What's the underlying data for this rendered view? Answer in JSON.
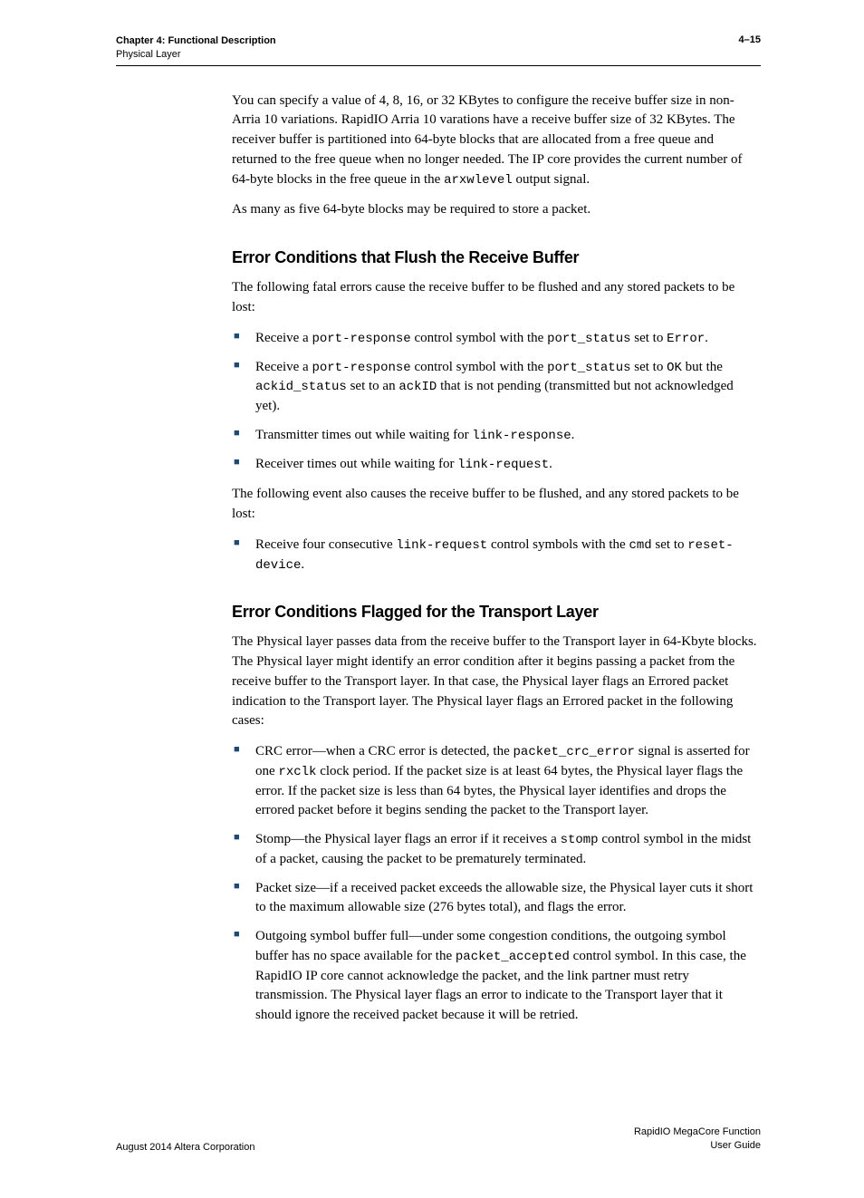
{
  "header": {
    "chapter": "Chapter 4:  Functional Description",
    "section": "Physical Layer",
    "pageNum": "4–15"
  },
  "intro": {
    "p1_a": "You can specify a value of 4, 8, 16, or 32 KBytes to configure the receive buffer size in non-Arria 10 variations. RapidIO Arria 10 varations have a receive buffer size of 32 KBytes. The receiver buffer is partitioned into 64-byte blocks that are allocated from a free queue and returned to the free queue when no longer needed. The IP core provides the current number of 64-byte blocks in the free queue in the ",
    "p1_code": "arxwlevel",
    "p1_b": " output signal.",
    "p2": "As many as five 64-byte blocks may be required to store a packet."
  },
  "sec1": {
    "heading": "Error Conditions that Flush the Receive Buffer",
    "p1": "The following fatal errors cause the receive buffer to be flushed and any stored packets to be lost:",
    "b1": {
      "a": "Receive a ",
      "c1": "port-response",
      "b": " control symbol with the ",
      "c2": "port_status",
      "c": " set to ",
      "c3": "Error",
      "d": "."
    },
    "b2": {
      "a": "Receive a ",
      "c1": "port-response",
      "b": " control symbol with the ",
      "c2": "port_status",
      "c": " set to ",
      "c3": "OK",
      "d": " but the ",
      "c4": "ackid_status",
      "e": " set to an ",
      "c5": "ackID",
      "f": " that is not pending (transmitted but not acknowledged yet)."
    },
    "b3": {
      "a": "Transmitter times out while waiting for ",
      "c1": "link-response",
      "b": "."
    },
    "b4": {
      "a": "Receiver times out while waiting for ",
      "c1": "link-request",
      "b": "."
    },
    "p2": "The following event also causes the receive buffer to be flushed, and any stored packets to be lost:",
    "b5": {
      "a": "Receive four consecutive ",
      "c1": "link-request",
      "b": " control symbols with the ",
      "c2": "cmd",
      "c": " set to ",
      "c3": "reset-device",
      "d": "."
    }
  },
  "sec2": {
    "heading": "Error Conditions Flagged for the Transport Layer",
    "p1": "The Physical layer passes data from the receive buffer to the Transport layer in 64-Kbyte blocks. The Physical layer might identify an error condition after it begins passing a packet from the receive buffer to the Transport layer. In that case, the Physical layer flags an Errored packet indication to the Transport layer. The Physical layer flags an Errored packet in the following cases:",
    "b1": {
      "a": "CRC error—when a CRC error is detected, the ",
      "c1": "packet_crc_error",
      "b": " signal is asserted for one ",
      "c2": "rxclk",
      "c": " clock period. If the packet size is at least 64 bytes, the Physical layer flags the error. If the packet size is less than 64 bytes, the Physical layer identifies and drops the errored packet before it begins sending the packet to the Transport layer."
    },
    "b2": {
      "a": "Stomp—the Physical layer flags an error if it receives a ",
      "c1": "stomp",
      "b": " control symbol in the midst of a packet, causing the packet to be prematurely terminated."
    },
    "b3": {
      "a": "Packet size—if a received packet exceeds the allowable size, the Physical layer cuts it short to the maximum allowable size (276 bytes total), and flags the error."
    },
    "b4": {
      "a": "Outgoing symbol buffer full—under some congestion conditions, the outgoing symbol buffer has no space available for the ",
      "c1": "packet_accepted",
      "b": " control symbol. In this case, the RapidIO IP core cannot acknowledge the packet, and the link partner must retry transmission. The Physical layer flags an error to indicate to the Transport layer that it should ignore the received packet because it will be retried."
    }
  },
  "footer": {
    "left": "August 2014    Altera Corporation",
    "right1": "RapidIO MegaCore Function",
    "right2": "User Guide"
  }
}
